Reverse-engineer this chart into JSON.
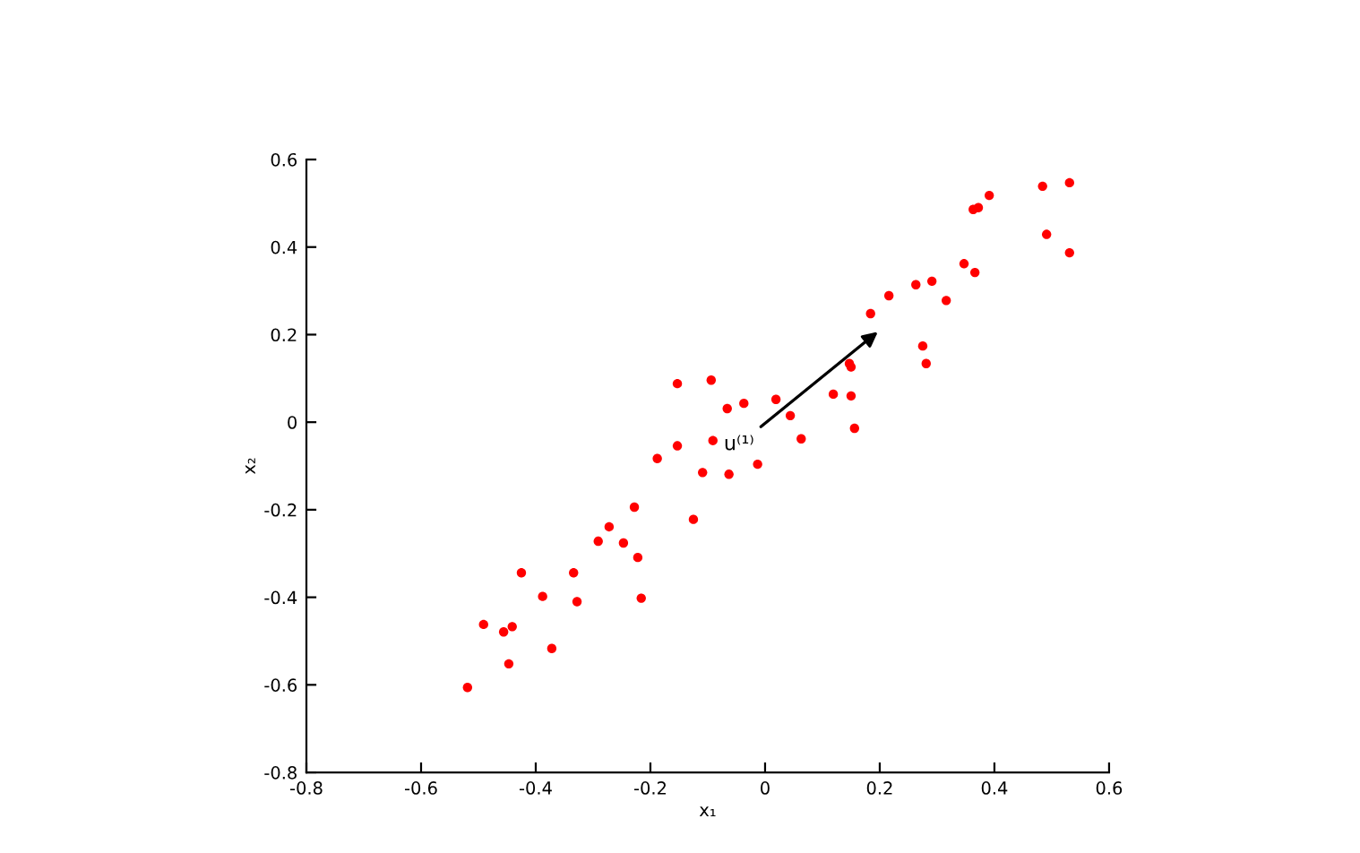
{
  "chart_data": {
    "type": "scatter",
    "xlabel": "x₁",
    "ylabel": "x₂",
    "marker": "circle",
    "grid": false,
    "legend": false,
    "xlim": [
      -0.8,
      0.6
    ],
    "ylim": [
      -0.8,
      0.6
    ],
    "xticks": [
      -0.8,
      -0.6,
      -0.4,
      -0.2,
      0,
      0.2,
      0.4,
      0.6
    ],
    "yticks": [
      -0.8,
      -0.6,
      -0.4,
      -0.2,
      0,
      0.2,
      0.4,
      0.6
    ],
    "annotations": [
      "u⁽¹⁾"
    ],
    "series": [
      {
        "color": "#ff0000",
        "x": [
          -0.519,
          -0.491,
          -0.456,
          -0.441,
          -0.447,
          -0.425,
          -0.388,
          -0.372,
          -0.334,
          -0.328,
          -0.291,
          -0.272,
          -0.247,
          -0.228,
          -0.222,
          -0.216,
          -0.188,
          -0.153,
          -0.153,
          -0.109,
          -0.125,
          -0.094,
          -0.091,
          -0.063,
          -0.066,
          -0.037,
          -0.013,
          0.019,
          0.044,
          0.063,
          0.119,
          0.147,
          0.15,
          0.15,
          0.156,
          0.184,
          0.216,
          0.263,
          0.291,
          0.275,
          0.281,
          0.316,
          0.347,
          0.366,
          0.363,
          0.372,
          0.391,
          0.484,
          0.491,
          0.531,
          0.531
        ],
        "values": [
          -0.606,
          -0.462,
          -0.479,
          -0.467,
          -0.552,
          -0.344,
          -0.398,
          -0.517,
          -0.344,
          -0.41,
          -0.272,
          -0.239,
          -0.276,
          -0.194,
          -0.309,
          -0.402,
          -0.083,
          -0.054,
          0.088,
          -0.115,
          -0.222,
          0.096,
          -0.042,
          -0.119,
          0.031,
          0.043,
          -0.096,
          0.052,
          0.015,
          -0.038,
          0.064,
          0.134,
          0.126,
          0.06,
          -0.014,
          0.248,
          0.289,
          0.314,
          0.322,
          0.174,
          0.134,
          0.278,
          0.362,
          0.342,
          0.486,
          0.49,
          0.518,
          0.539,
          0.429,
          0.547,
          0.387
        ]
      }
    ]
  }
}
